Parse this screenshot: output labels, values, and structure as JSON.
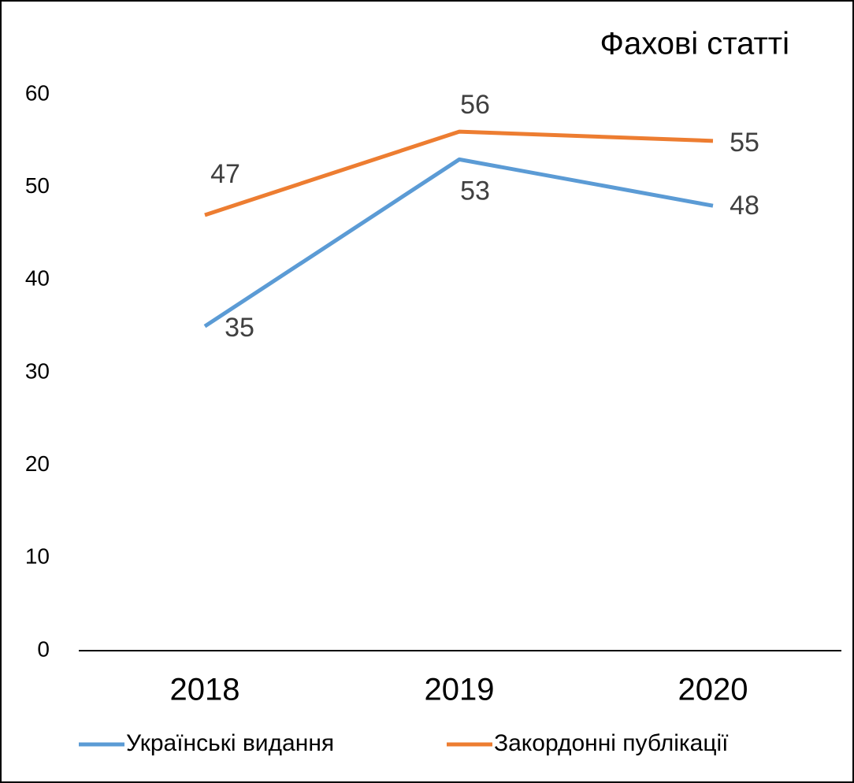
{
  "chart_data": {
    "type": "line",
    "title": "Фахові статті",
    "categories": [
      "2018",
      "2019",
      "2020"
    ],
    "series": [
      {
        "name": "Українські видання",
        "color": "#5b9bd5",
        "values": [
          35,
          53,
          48
        ]
      },
      {
        "name": "Закордонні публікації",
        "color": "#ed7d31",
        "values": [
          47,
          56,
          55
        ]
      }
    ],
    "ylim": [
      0,
      60
    ],
    "yticks": [
      0,
      10,
      20,
      30,
      40,
      50,
      60
    ],
    "grid": false,
    "legend": "bottom"
  }
}
